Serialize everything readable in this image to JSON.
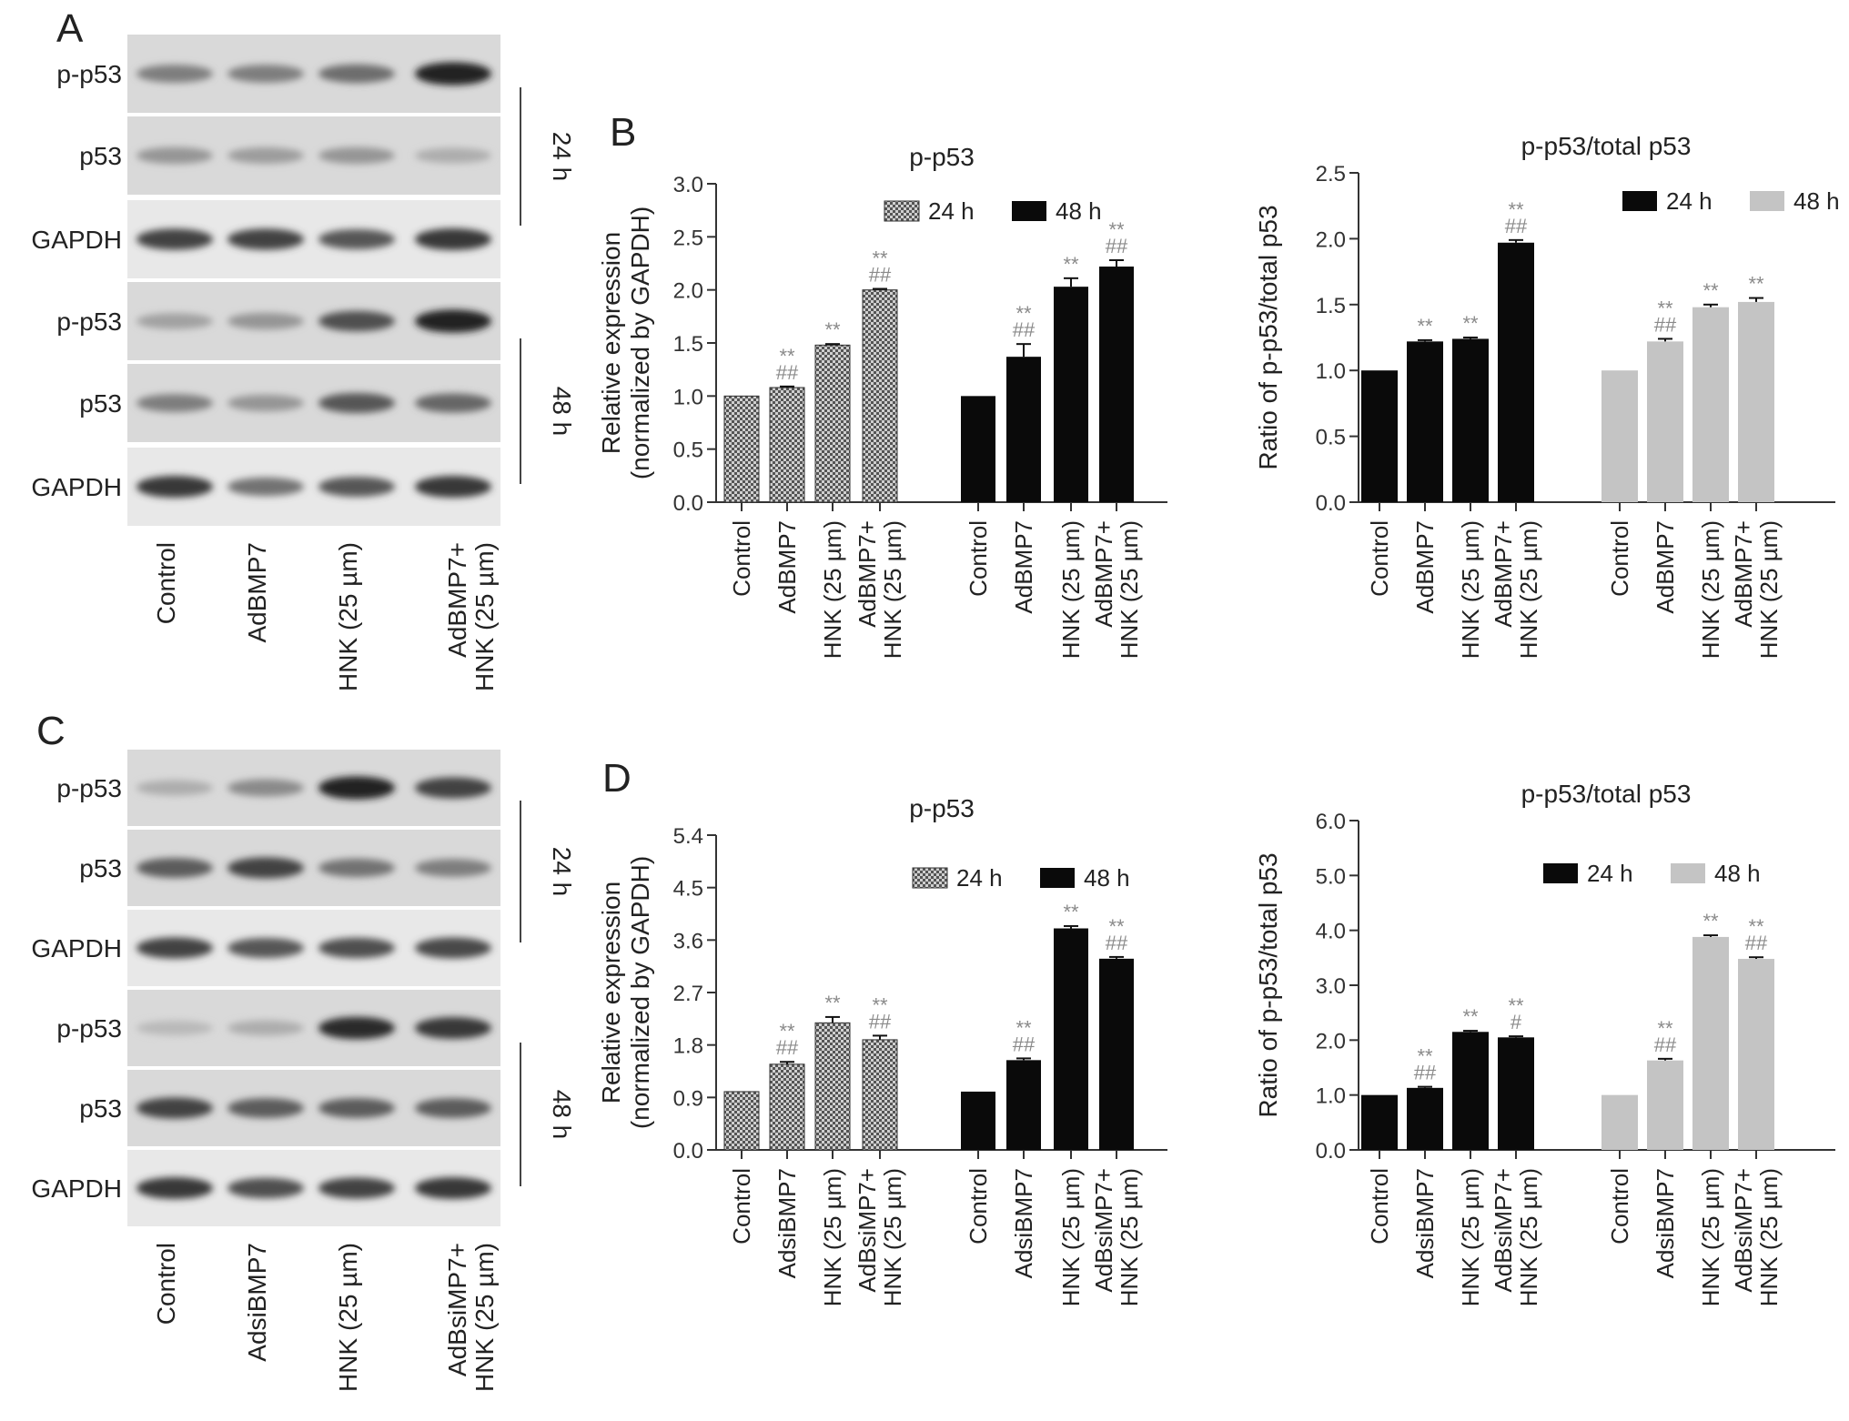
{
  "panels": {
    "A": {
      "letter": "A",
      "lanes": [
        "Control",
        "AdBMP7",
        "HNK (25 µm)",
        "AdBMP7+|HNK (25 µm)"
      ],
      "rows": [
        "p-p53",
        "p53",
        "GAPDH",
        "p-p53",
        "p53",
        "GAPDH"
      ],
      "brackets": [
        "24 h",
        "48 h"
      ]
    },
    "C": {
      "letter": "C",
      "lanes": [
        "Control",
        "AdsiBMP7",
        "HNK (25 µm)",
        "AdBsiMP7+|HNK (25 µm)"
      ],
      "rows": [
        "p-p53",
        "p53",
        "GAPDH",
        "p-p53",
        "p53",
        "GAPDH"
      ],
      "brackets": [
        "24 h",
        "48 h"
      ]
    },
    "B": {
      "letter": "B"
    },
    "D": {
      "letter": "D"
    }
  },
  "chart_data": [
    {
      "id": "B-left",
      "type": "bar",
      "title": "p-p53",
      "ylabel": "Relative expression|(normalized by GAPDH)",
      "ylim": [
        0,
        3.0
      ],
      "yticks": [
        "0.0",
        "0.5",
        "1.0",
        "1.5",
        "2.0",
        "2.5",
        "3.0"
      ],
      "categories": [
        "Control",
        "AdBMP7",
        "HNK (25 µm)",
        "AdBMP7+|HNK (25 µm)"
      ],
      "legend": "top-right",
      "series": [
        {
          "name": "24 h",
          "color": "#9a9a9a",
          "pattern": "checker",
          "values": [
            1.0,
            1.08,
            1.48,
            2.0
          ],
          "errors": [
            0,
            0.01,
            0.01,
            0.01
          ],
          "annotations": [
            "",
            "**|##",
            "**",
            "**|##"
          ]
        },
        {
          "name": "48 h",
          "color": "#0a0a0a",
          "values": [
            1.0,
            1.37,
            2.03,
            2.22
          ],
          "errors": [
            0,
            0.12,
            0.08,
            0.06
          ],
          "annotations": [
            "",
            "**|##",
            "**",
            "**|##"
          ]
        }
      ]
    },
    {
      "id": "B-right",
      "type": "bar",
      "title": "p-p53/total p53",
      "ylabel": "Ratio of p-p53/total p53",
      "ylim": [
        0,
        2.5
      ],
      "yticks": [
        "0.0",
        "0.5",
        "1.0",
        "1.5",
        "2.0",
        "2.5"
      ],
      "categories": [
        "Control",
        "AdBMP7",
        "HNK (25 µm)",
        "AdBMP7+|HNK (25 µm)"
      ],
      "legend": "top-right",
      "series": [
        {
          "name": "24 h",
          "color": "#0a0a0a",
          "values": [
            1.0,
            1.22,
            1.24,
            1.97
          ],
          "errors": [
            0,
            0.01,
            0.01,
            0.02
          ],
          "annotations": [
            "",
            "**",
            "**",
            "**|##"
          ]
        },
        {
          "name": "48 h",
          "color": "#c4c4c4",
          "values": [
            1.0,
            1.22,
            1.48,
            1.52
          ],
          "errors": [
            0,
            0.02,
            0.02,
            0.03
          ],
          "annotations": [
            "",
            "**|##",
            "**",
            "**"
          ]
        }
      ]
    },
    {
      "id": "D-left",
      "type": "bar",
      "title": "p-p53",
      "ylabel": "Relative expression|(normalized by GAPDH)",
      "ylim": [
        0,
        5.4
      ],
      "yticks": [
        "0.0",
        "0.9",
        "1.8",
        "2.7",
        "3.6",
        "4.5",
        "5.4"
      ],
      "categories": [
        "Control",
        "AdsiBMP7",
        "HNK (25 µm)",
        "AdBsiMP7+|HNK (25 µm)"
      ],
      "legend": "top-right",
      "series": [
        {
          "name": "24 h",
          "color": "#9a9a9a",
          "pattern": "checker",
          "values": [
            1.0,
            1.47,
            2.18,
            1.89
          ],
          "errors": [
            0,
            0.04,
            0.1,
            0.07
          ],
          "annotations": [
            "",
            "**|##",
            "**",
            "**|##"
          ]
        },
        {
          "name": "48 h",
          "color": "#0a0a0a",
          "values": [
            1.0,
            1.54,
            3.8,
            3.28
          ],
          "errors": [
            0,
            0.03,
            0.04,
            0.03
          ],
          "annotations": [
            "",
            "**|##",
            "**",
            "**|##"
          ]
        }
      ]
    },
    {
      "id": "D-right",
      "type": "bar",
      "title": "p-p53/total p53",
      "ylabel": "Ratio of p-p53/total p53",
      "ylim": [
        0,
        6.0
      ],
      "yticks": [
        "0.0",
        "1.0",
        "2.0",
        "3.0",
        "4.0",
        "5.0",
        "6.0"
      ],
      "categories": [
        "Control",
        "AdsiBMP7",
        "HNK (25 µm)",
        "AdBsiMP7+|HNK (25 µm)"
      ],
      "legend": "top-right",
      "series": [
        {
          "name": "24 h",
          "color": "#0a0a0a",
          "values": [
            1.0,
            1.13,
            2.15,
            2.05
          ],
          "errors": [
            0,
            0.02,
            0.02,
            0.02
          ],
          "annotations": [
            "",
            "**|##",
            "**",
            "**|#"
          ]
        },
        {
          "name": "48 h",
          "color": "#c4c4c4",
          "values": [
            1.0,
            1.63,
            3.88,
            3.48
          ],
          "errors": [
            0,
            0.03,
            0.03,
            0.03
          ],
          "annotations": [
            "",
            "**|##",
            "**",
            "**|##"
          ]
        }
      ]
    }
  ]
}
